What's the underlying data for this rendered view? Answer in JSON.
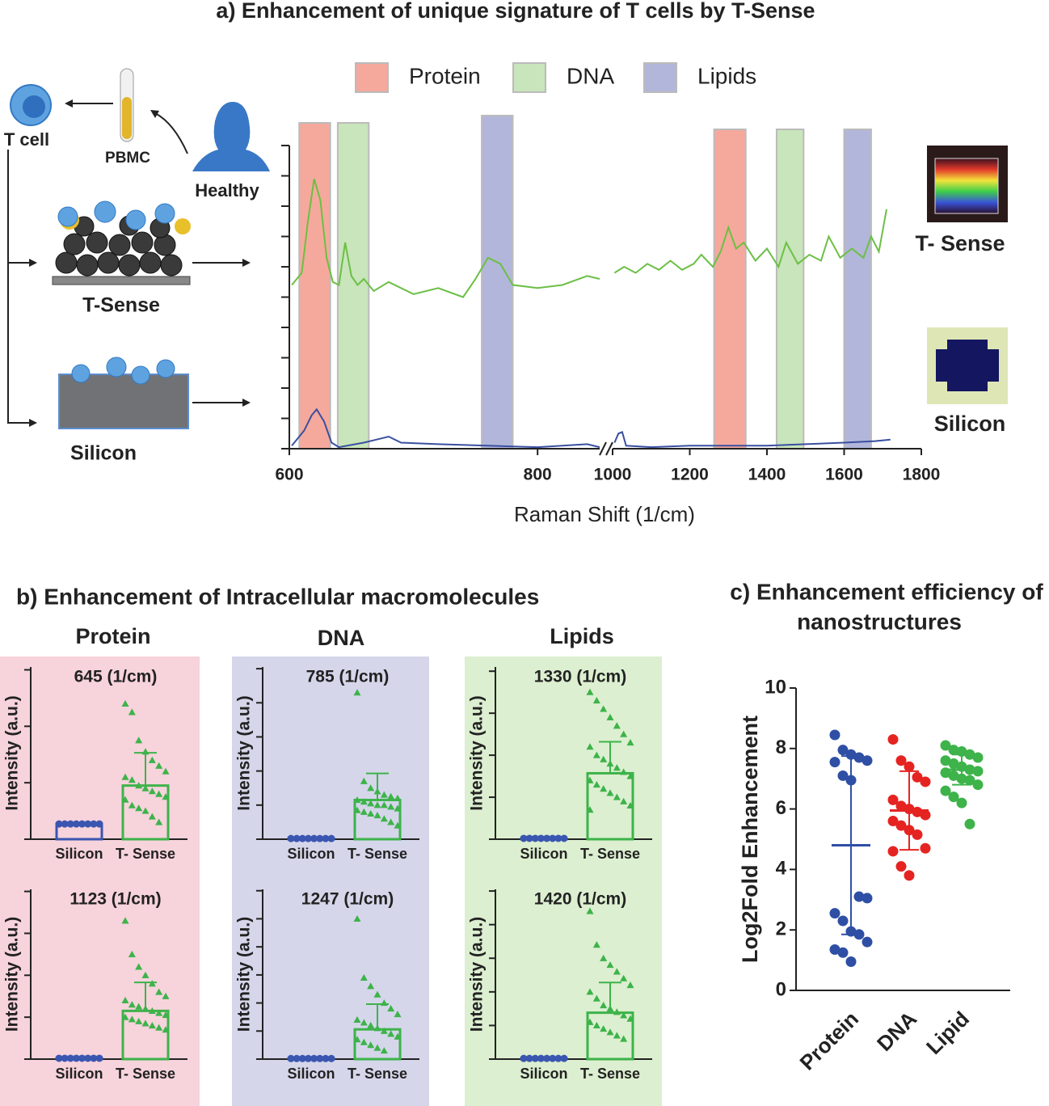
{
  "diagram": {
    "labels": [
      "T cell",
      "PBMC",
      "Healthy",
      "T-Sense",
      "Silicon"
    ]
  },
  "panel_b": {
    "title": "b)  Enhancement  of Intracellular macromolecules",
    "columns": [
      "Protein",
      "DNA",
      "Lipids"
    ]
  },
  "chart_data": [
    {
      "type": "spectra",
      "title": "a) Enhancement of unique signature of T cells by T-Sense",
      "x_label": "Raman Shift (1/cm)",
      "ylim": [
        0,
        10
      ],
      "yticks": [
        0,
        1,
        2,
        3,
        4,
        5,
        6,
        7,
        8,
        9,
        10
      ],
      "x_segments": [
        {
          "xlim": [
            600,
            850
          ],
          "xticks": [
            600,
            800
          ]
        },
        {
          "xlim": [
            1000,
            1800
          ],
          "xticks": [
            1000,
            1200,
            1400,
            1600,
            1800
          ]
        }
      ],
      "bands": [
        {
          "name": "Protein",
          "color": "#f5a99c",
          "ranges": [
            [
              608,
              633
            ],
            [
              1263,
              1345
            ]
          ]
        },
        {
          "name": "DNA",
          "color": "#c8e5bb",
          "ranges": [
            [
              639,
              664
            ],
            [
              1425,
              1495
            ]
          ]
        },
        {
          "name": "Lipids",
          "color": "#b2b6da",
          "ranges": [
            [
              755,
              780
            ],
            [
              1600,
              1670
            ]
          ]
        }
      ],
      "series": [
        {
          "name": "T- Sense",
          "color": "#6cbf45",
          "segments": [
            {
              "x": [
                602,
                610,
                615,
                620,
                625,
                630,
                635,
                640,
                645,
                650,
                655,
                660,
                668,
                680,
                700,
                720,
                740,
                750,
                760,
                770,
                780,
                800,
                820,
                840,
                850
              ],
              "values": [
                5.4,
                5.8,
                7.5,
                8.9,
                8.2,
                6.3,
                5.5,
                5.4,
                6.8,
                5.7,
                5.4,
                5.6,
                5.2,
                5.5,
                5.1,
                5.3,
                5.0,
                5.6,
                6.3,
                6.1,
                5.4,
                5.3,
                5.4,
                5.7,
                5.6
              ]
            },
            {
              "x": [
                1005,
                1030,
                1060,
                1090,
                1120,
                1150,
                1180,
                1210,
                1230,
                1260,
                1280,
                1300,
                1320,
                1340,
                1370,
                1400,
                1430,
                1450,
                1480,
                1510,
                1540,
                1560,
                1590,
                1620,
                1650,
                1670,
                1690,
                1710
              ],
              "values": [
                5.8,
                6.0,
                5.8,
                6.1,
                5.9,
                6.2,
                5.9,
                6.1,
                6.4,
                6.0,
                6.5,
                7.3,
                6.6,
                6.8,
                6.2,
                6.6,
                6.0,
                6.8,
                6.1,
                6.4,
                6.2,
                7.0,
                6.3,
                6.6,
                6.3,
                7.0,
                6.5,
                7.9
              ]
            }
          ]
        },
        {
          "name": "Silicon",
          "color": "#3a4fa0",
          "segments": [
            {
              "x": [
                602,
                612,
                618,
                622,
                628,
                634,
                640,
                660,
                670,
                680,
                690,
                720,
                760,
                800,
                840,
                850
              ],
              "values": [
                0.1,
                0.6,
                1.1,
                1.3,
                0.9,
                0.2,
                0.05,
                0.2,
                0.3,
                0.4,
                0.2,
                0.15,
                0.1,
                0.05,
                0.15,
                0.05
              ]
            },
            {
              "x": [
                1005,
                1015,
                1025,
                1035,
                1100,
                1200,
                1300,
                1400,
                1500,
                1600,
                1680,
                1720
              ],
              "values": [
                0.2,
                0.5,
                0.55,
                0.1,
                0.05,
                0.1,
                0.1,
                0.1,
                0.15,
                0.2,
                0.25,
                0.3
              ]
            }
          ]
        }
      ]
    },
    {
      "type": "dot",
      "title": "645 (1/cm)",
      "y_label": "Intensity (a.u.)",
      "tick_labels": false,
      "ylim": [
        0,
        3.05
      ],
      "yticks": [
        0,
        1,
        2,
        3
      ],
      "categories": [
        "Silicon",
        "T- Sense"
      ],
      "groups": [
        {
          "color": "#3a56b0",
          "marker": "circle",
          "mean": 0.27,
          "sd": 0.01,
          "values": [
            0.27,
            0.27,
            0.27,
            0.27,
            0.27,
            0.27,
            0.27,
            0.27
          ]
        },
        {
          "color": "#3db34a",
          "marker": "triangle",
          "mean": 0.95,
          "sd": 0.58,
          "values": [
            2.4,
            2.25,
            1.75,
            1.55,
            1.4,
            1.3,
            1.2,
            1.1,
            1.05,
            0.95,
            0.9,
            0.85,
            0.8,
            0.75,
            0.7,
            0.6,
            0.55,
            0.5,
            0.4,
            0.3
          ]
        }
      ]
    },
    {
      "type": "dot",
      "title": "785 (1/cm)",
      "y_label": "Intensity (a.u.)",
      "tick_labels": false,
      "ylim": [
        0,
        5.05
      ],
      "yticks": [
        0,
        1,
        2,
        3,
        4,
        5
      ],
      "categories": [
        "Silicon",
        "T- Sense"
      ],
      "groups": [
        {
          "color": "#3a56b0",
          "marker": "circle",
          "mean": 0.02,
          "sd": 0.01,
          "values": [
            0.02,
            0.02,
            0.02,
            0.02,
            0.02,
            0.02,
            0.02,
            0.02
          ]
        },
        {
          "color": "#3db34a",
          "marker": "triangle",
          "mean": 1.15,
          "sd": 0.78,
          "values": [
            4.3,
            1.7,
            1.5,
            1.4,
            1.3,
            1.25,
            1.2,
            1.15,
            1.1,
            1.05,
            1.0,
            1.0,
            0.95,
            0.9,
            0.85,
            0.8,
            0.75,
            0.7,
            0.6,
            0.5,
            0.4
          ]
        }
      ]
    },
    {
      "type": "dot",
      "title": "1330 (1/cm)",
      "y_label": "Intensity (a.u.)",
      "tick_labels": false,
      "ylim": [
        0,
        4.1
      ],
      "yticks": [
        0,
        1,
        2,
        3,
        4
      ],
      "categories": [
        "Silicon",
        "T- Sense"
      ],
      "groups": [
        {
          "color": "#3a56b0",
          "marker": "circle",
          "mean": 0.02,
          "sd": 0.01,
          "values": [
            0.02,
            0.02,
            0.02,
            0.02,
            0.02,
            0.02,
            0.02,
            0.02
          ]
        },
        {
          "color": "#3db34a",
          "marker": "triangle",
          "mean": 1.57,
          "sd": 0.75,
          "values": [
            3.5,
            3.3,
            3.1,
            2.9,
            2.7,
            2.5,
            2.3,
            2.2,
            2.0,
            1.9,
            1.8,
            1.7,
            1.6,
            1.5,
            1.4,
            1.3,
            1.2,
            1.1,
            1.0,
            0.9,
            0.8,
            0.7
          ]
        }
      ]
    },
    {
      "type": "dot",
      "title": "1123 (1/cm)",
      "y_label": "Intensity (a.u.)",
      "tick_labels": false,
      "ylim": [
        0,
        4.05
      ],
      "yticks": [
        0,
        1,
        2,
        3,
        4
      ],
      "categories": [
        "Silicon",
        "T- Sense"
      ],
      "groups": [
        {
          "color": "#3a56b0",
          "marker": "circle",
          "mean": 0.02,
          "sd": 0.01,
          "values": [
            0.02,
            0.02,
            0.02,
            0.02,
            0.02,
            0.02,
            0.02,
            0.02
          ]
        },
        {
          "color": "#3db34a",
          "marker": "triangle",
          "mean": 1.15,
          "sd": 0.68,
          "values": [
            3.3,
            2.5,
            2.2,
            2.0,
            1.8,
            1.6,
            1.5,
            1.4,
            1.3,
            1.25,
            1.2,
            1.15,
            1.1,
            1.05,
            1.0,
            0.95,
            0.9,
            0.85,
            0.8,
            0.75,
            0.7
          ]
        }
      ]
    },
    {
      "type": "dot",
      "title": "1247 (1/cm)",
      "y_label": "Intensity (a.u.)",
      "tick_labels": false,
      "ylim": [
        0,
        6.05
      ],
      "yticks": [
        0,
        1,
        2,
        3,
        4,
        5,
        6
      ],
      "categories": [
        "Silicon",
        "T- Sense"
      ],
      "groups": [
        {
          "color": "#3a56b0",
          "marker": "circle",
          "mean": 0.02,
          "sd": 0.01,
          "values": [
            0.02,
            0.02,
            0.02,
            0.02,
            0.02,
            0.02,
            0.02,
            0.02
          ]
        },
        {
          "color": "#3db34a",
          "marker": "triangle",
          "mean": 1.06,
          "sd": 0.9,
          "values": [
            5.0,
            2.9,
            2.6,
            2.3,
            2.0,
            1.8,
            1.6,
            1.4,
            1.3,
            1.2,
            1.1,
            1.0,
            0.9,
            0.8,
            0.7,
            0.6,
            0.5,
            0.4,
            0.3
          ]
        }
      ]
    },
    {
      "type": "dot",
      "title": "1420 (1/cm)",
      "y_label": "Intensity (a.u.)",
      "tick_labels": false,
      "ylim": [
        0,
        5.05
      ],
      "yticks": [
        0,
        1,
        2,
        3,
        4,
        5
      ],
      "categories": [
        "Silicon",
        "T- Sense"
      ],
      "groups": [
        {
          "color": "#3a56b0",
          "marker": "circle",
          "mean": 0.02,
          "sd": 0.01,
          "values": [
            0.02,
            0.02,
            0.02,
            0.02,
            0.02,
            0.02,
            0.02,
            0.02
          ]
        },
        {
          "color": "#3db34a",
          "marker": "triangle",
          "mean": 1.38,
          "sd": 0.9,
          "values": [
            4.4,
            3.4,
            3.0,
            2.8,
            2.6,
            2.4,
            2.2,
            2.0,
            1.8,
            1.6,
            1.5,
            1.4,
            1.3,
            1.2,
            1.1,
            1.0,
            0.9,
            0.8,
            0.7,
            0.6
          ]
        }
      ]
    },
    {
      "type": "dot",
      "title": [
        "c) Enhancement efficiency of",
        "nanostructures"
      ],
      "y_label": "Log2Fold Enhancement",
      "tick_labels": true,
      "ylim": [
        0,
        10
      ],
      "yticks": [
        0,
        2,
        4,
        6,
        8,
        10
      ],
      "categories": [
        "Protein",
        "DNA",
        "Lipid"
      ],
      "groups": [
        {
          "color": "#2f4fa5",
          "marker": "circle",
          "mean": 4.8,
          "sd": 2.95,
          "values": [
            8.45,
            7.95,
            7.8,
            7.7,
            7.6,
            7.55,
            7.1,
            6.95,
            3.1,
            3.05,
            2.55,
            2.3,
            1.95,
            1.85,
            1.6,
            1.35,
            1.25,
            0.95
          ]
        },
        {
          "color": "#e52421",
          "marker": "circle",
          "mean": 5.95,
          "sd": 1.3,
          "values": [
            8.3,
            7.6,
            7.4,
            7.05,
            6.9,
            6.3,
            6.1,
            6.0,
            5.9,
            5.8,
            5.6,
            5.45,
            5.3,
            5.15,
            4.7,
            4.6,
            4.1,
            3.8
          ]
        },
        {
          "color": "#3db34a",
          "marker": "circle",
          "mean": 7.3,
          "sd": 0.5,
          "values": [
            8.1,
            7.95,
            7.9,
            7.8,
            7.7,
            7.6,
            7.5,
            7.4,
            7.3,
            7.25,
            7.2,
            7.1,
            7.0,
            6.95,
            6.8,
            6.6,
            6.4,
            6.2,
            5.5
          ]
        }
      ]
    }
  ]
}
